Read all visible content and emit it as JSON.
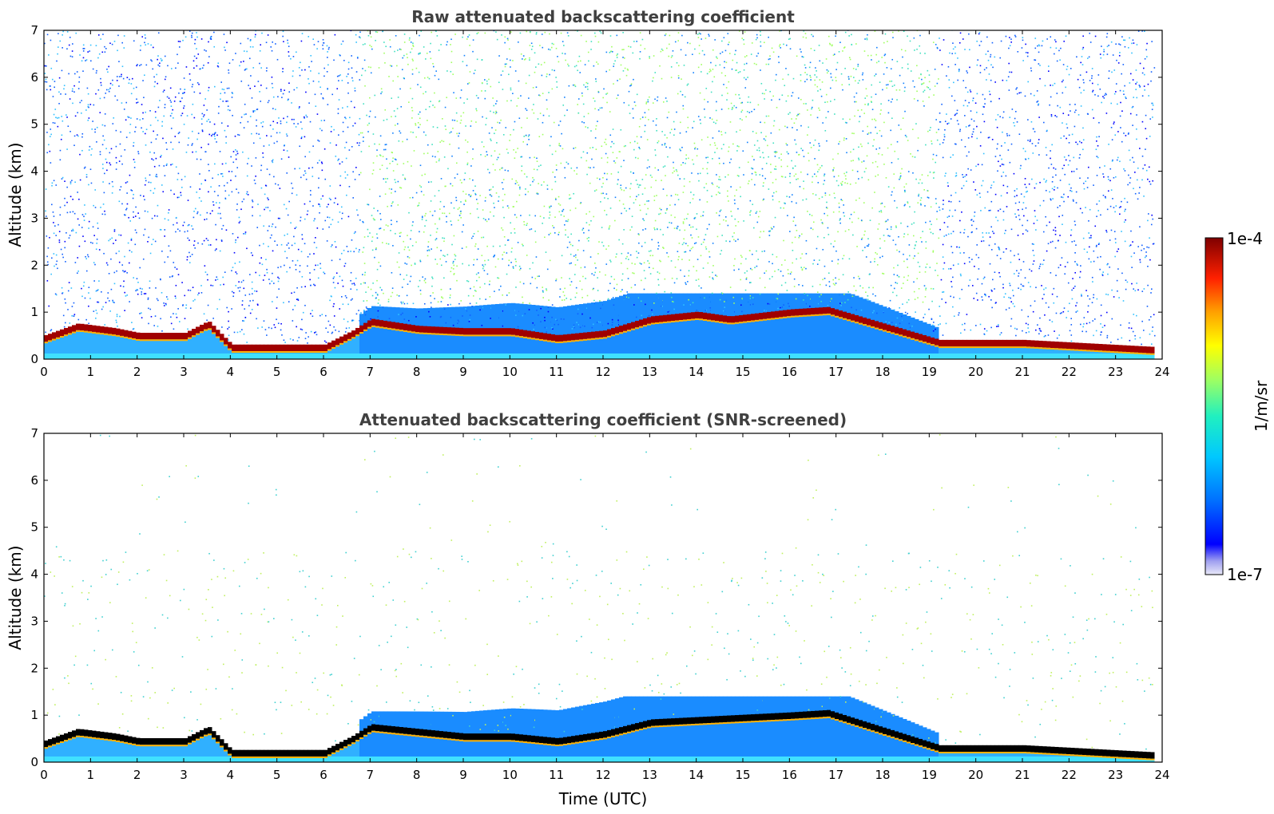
{
  "chart_data": [
    {
      "type": "heatmap",
      "title": "Raw attenuated backscattering coefficient",
      "xlabel": "",
      "ylabel": "Altitude (km)",
      "xlim": [
        0,
        24
      ],
      "ylim": [
        0,
        7
      ],
      "x_ticks": [
        "0",
        "1",
        "2",
        "3",
        "4",
        "5",
        "6",
        "7",
        "8",
        "9",
        "10",
        "11",
        "12",
        "13",
        "14",
        "15",
        "16",
        "17",
        "18",
        "19",
        "20",
        "21",
        "22",
        "23",
        "24"
      ],
      "y_ticks": [
        "0",
        "1",
        "2",
        "3",
        "4",
        "5",
        "6",
        "7"
      ],
      "data_end_hour": 23.8,
      "colorscale": "jet",
      "boundary_layer_top_km": [
        {
          "t": 0.0,
          "h": 0.45
        },
        {
          "t": 0.7,
          "h": 0.7
        },
        {
          "t": 1.5,
          "h": 0.6
        },
        {
          "t": 2.0,
          "h": 0.5
        },
        {
          "t": 3.0,
          "h": 0.5
        },
        {
          "t": 3.5,
          "h": 0.75
        },
        {
          "t": 4.0,
          "h": 0.25
        },
        {
          "t": 5.0,
          "h": 0.25
        },
        {
          "t": 6.0,
          "h": 0.25
        },
        {
          "t": 6.6,
          "h": 0.55
        },
        {
          "t": 7.0,
          "h": 0.8
        },
        {
          "t": 8.0,
          "h": 0.65
        },
        {
          "t": 9.0,
          "h": 0.6
        },
        {
          "t": 10.0,
          "h": 0.6
        },
        {
          "t": 11.0,
          "h": 0.45
        },
        {
          "t": 12.0,
          "h": 0.55
        },
        {
          "t": 13.0,
          "h": 0.85
        },
        {
          "t": 14.0,
          "h": 0.95
        },
        {
          "t": 14.7,
          "h": 0.85
        },
        {
          "t": 16.0,
          "h": 1.0
        },
        {
          "t": 16.8,
          "h": 1.05
        },
        {
          "t": 19.2,
          "h": 0.35
        },
        {
          "t": 21.0,
          "h": 0.35
        },
        {
          "t": 23.8,
          "h": 0.2
        }
      ]
    },
    {
      "type": "heatmap",
      "title": "Attenuated backscattering coefficient (SNR-screened)",
      "xlabel": "Time (UTC)",
      "ylabel": "Altitude (km)",
      "xlim": [
        0,
        24
      ],
      "ylim": [
        0,
        7
      ],
      "x_ticks": [
        "0",
        "1",
        "2",
        "3",
        "4",
        "5",
        "6",
        "7",
        "8",
        "9",
        "10",
        "11",
        "12",
        "13",
        "14",
        "15",
        "16",
        "17",
        "18",
        "19",
        "20",
        "21",
        "22",
        "23",
        "24"
      ],
      "y_ticks": [
        "0",
        "1",
        "2",
        "3",
        "4",
        "5",
        "6",
        "7"
      ],
      "data_end_hour": 23.8,
      "colorscale": "jet",
      "boundary_layer_top_km": [
        {
          "t": 0.0,
          "h": 0.4
        },
        {
          "t": 0.7,
          "h": 0.65
        },
        {
          "t": 1.5,
          "h": 0.55
        },
        {
          "t": 2.0,
          "h": 0.45
        },
        {
          "t": 3.0,
          "h": 0.45
        },
        {
          "t": 3.5,
          "h": 0.7
        },
        {
          "t": 4.0,
          "h": 0.2
        },
        {
          "t": 5.0,
          "h": 0.2
        },
        {
          "t": 6.0,
          "h": 0.2
        },
        {
          "t": 6.6,
          "h": 0.5
        },
        {
          "t": 7.0,
          "h": 0.75
        },
        {
          "t": 8.0,
          "h": 0.65
        },
        {
          "t": 9.0,
          "h": 0.55
        },
        {
          "t": 10.0,
          "h": 0.55
        },
        {
          "t": 11.0,
          "h": 0.45
        },
        {
          "t": 12.0,
          "h": 0.6
        },
        {
          "t": 13.0,
          "h": 0.85
        },
        {
          "t": 14.0,
          "h": 0.9
        },
        {
          "t": 15.0,
          "h": 0.95
        },
        {
          "t": 16.0,
          "h": 1.0
        },
        {
          "t": 16.8,
          "h": 1.05
        },
        {
          "t": 19.2,
          "h": 0.3
        },
        {
          "t": 21.0,
          "h": 0.3
        },
        {
          "t": 23.8,
          "h": 0.15
        }
      ]
    }
  ],
  "colorbar": {
    "label": "1/m/sr",
    "max_label": "1e-4",
    "min_label": "1e-7",
    "colors": [
      "#7f0000",
      "#ff0000",
      "#ff8000",
      "#ffff00",
      "#80ff80",
      "#00ffff",
      "#0080ff",
      "#0000ff",
      "#00008f",
      "#e0e0f8"
    ]
  }
}
